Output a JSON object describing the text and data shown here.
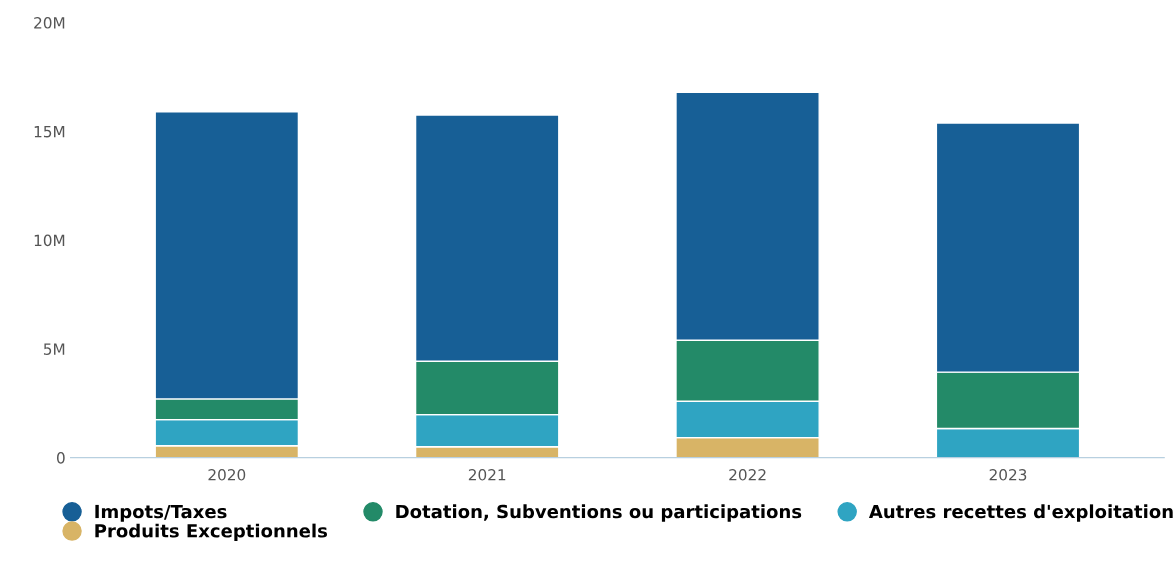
{
  "chart_data": {
    "type": "bar",
    "stacked": true,
    "categories": [
      "2020",
      "2021",
      "2022",
      "2023"
    ],
    "series": [
      {
        "name": "Produits Exceptionnels",
        "color": "#d8b466",
        "values": [
          0.55,
          0.5,
          0.92,
          0
        ]
      },
      {
        "name": "Autres recettes d'exploitation",
        "color": "#2fa4c2",
        "values": [
          1.2,
          1.48,
          1.67,
          1.34
        ]
      },
      {
        "name": "Dotation, Subventions ou participations",
        "color": "#238a68",
        "values": [
          0.95,
          2.45,
          2.81,
          2.59
        ]
      },
      {
        "name": "Impots/Taxes",
        "color": "#175f96",
        "values": [
          13.2,
          11.32,
          11.4,
          11.45
        ]
      }
    ],
    "ylim": [
      0,
      20
    ],
    "yticks": [
      {
        "value": 0,
        "label": "0"
      },
      {
        "value": 5,
        "label": "5M"
      },
      {
        "value": 10,
        "label": "10M"
      },
      {
        "value": 15,
        "label": "15M"
      },
      {
        "value": 20,
        "label": "20M"
      }
    ],
    "grid": false,
    "legend": "bottom"
  }
}
